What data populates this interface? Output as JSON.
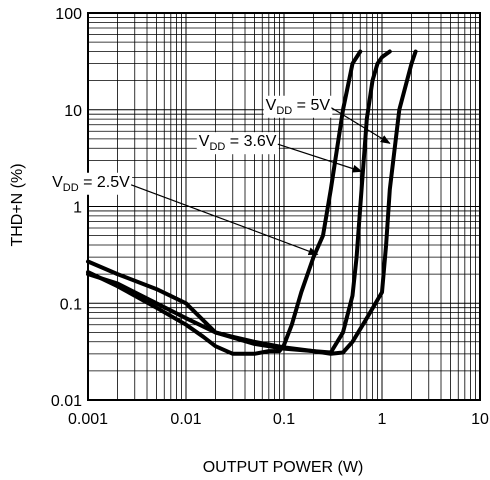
{
  "chart_data": {
    "type": "line",
    "x_scale": "log",
    "y_scale": "log",
    "xlim": [
      0.001,
      10
    ],
    "ylim": [
      0.01,
      100
    ],
    "xlabel": "OUTPUT POWER (W)",
    "ylabel": "THD+N (%)",
    "x_ticks": [
      "0.001",
      "0.01",
      "0.1",
      "1",
      "10"
    ],
    "y_ticks": [
      "0.01",
      "0.1",
      "1",
      "10",
      "100"
    ],
    "grid": true,
    "series": [
      {
        "name": "VDD = 2.5V",
        "label_main": "V",
        "label_sub": "DD",
        "label_rest": " = 2.5V",
        "x": [
          0.001,
          0.002,
          0.005,
          0.01,
          0.015,
          0.02,
          0.03,
          0.05,
          0.07,
          0.09,
          0.1,
          0.12,
          0.15,
          0.2,
          0.25,
          0.3,
          0.4,
          0.5,
          0.6
        ],
        "y": [
          0.21,
          0.15,
          0.09,
          0.06,
          0.045,
          0.036,
          0.03,
          0.03,
          0.032,
          0.032,
          0.037,
          0.06,
          0.13,
          0.3,
          0.5,
          1.5,
          10,
          30,
          40
        ]
      },
      {
        "name": "VDD = 3.6V",
        "label_main": "V",
        "label_sub": "DD",
        "label_rest": " = 3.6V",
        "x": [
          0.001,
          0.002,
          0.005,
          0.01,
          0.02,
          0.05,
          0.1,
          0.2,
          0.3,
          0.4,
          0.5,
          0.55,
          0.6,
          0.7,
          0.8,
          0.9,
          1.0,
          1.2
        ],
        "y": [
          0.27,
          0.2,
          0.14,
          0.1,
          0.05,
          0.038,
          0.034,
          0.032,
          0.031,
          0.05,
          0.12,
          0.3,
          1.0,
          8,
          20,
          30,
          35,
          40
        ]
      },
      {
        "name": "VDD = 5V",
        "label_main": "V",
        "label_sub": "DD",
        "label_rest": " = 5V",
        "x": [
          0.001,
          0.002,
          0.005,
          0.01,
          0.02,
          0.03,
          0.05,
          0.1,
          0.2,
          0.3,
          0.4,
          0.5,
          0.7,
          1.0,
          1.1,
          1.2,
          1.5,
          2.0,
          2.2
        ],
        "y": [
          0.2,
          0.16,
          0.1,
          0.07,
          0.05,
          0.045,
          0.04,
          0.035,
          0.032,
          0.03,
          0.031,
          0.04,
          0.07,
          0.13,
          0.4,
          1.5,
          10,
          30,
          40
        ]
      }
    ],
    "annotations": [
      {
        "series": 2,
        "text_x": 0.065,
        "text_y": 10,
        "point_x": 1.2,
        "point_y": 4.5
      },
      {
        "series": 1,
        "text_x": 0.0135,
        "text_y": 4.2,
        "point_x": 0.62,
        "point_y": 2.3
      },
      {
        "series": 0,
        "text_x": 0.00043,
        "text_y": 1.6,
        "point_x": 0.22,
        "point_y": 0.32
      }
    ]
  }
}
